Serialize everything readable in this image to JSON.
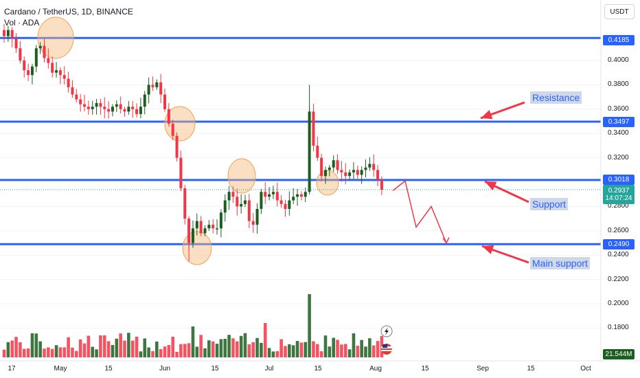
{
  "header": {
    "symbol_line": "Cardano / TetherUS, 1D, BINANCE",
    "volume_line": "Vol · ADA"
  },
  "currency_button": "USDT",
  "price_axis": {
    "ticks": [
      "0.4000",
      "0.3800",
      "0.3600",
      "0.3400",
      "0.3200",
      "0.2800",
      "0.2600",
      "0.2400",
      "0.2200",
      "0.2000",
      "0.1800"
    ],
    "tick_values": [
      0.4,
      0.38,
      0.36,
      0.34,
      0.32,
      0.28,
      0.26,
      0.24,
      0.22,
      0.2,
      0.18
    ]
  },
  "time_axis": {
    "labels": [
      "17",
      "May",
      "15",
      "Jun",
      "15",
      "Jul",
      "15",
      "Aug",
      "15",
      "Sep",
      "15",
      "Oct"
    ]
  },
  "levels": {
    "top": "0.4185",
    "resistance": "0.3497",
    "support": "0.3018",
    "main_support": "0.2490"
  },
  "current_price": "0.2937",
  "countdown": "14:07:24",
  "volume_value": "21.544M",
  "annotations": {
    "resistance": "Resistance",
    "support": "Support",
    "main_support": "Main support"
  },
  "colors": {
    "up": "#1b5e20",
    "down": "#f23645",
    "level_line": "#2962ff",
    "arrow": "#f23645"
  },
  "chart_data": {
    "type": "candlestick",
    "title": "Cardano / TetherUS, 1D, BINANCE",
    "ylim": [
      0.17,
      0.445
    ],
    "horizontal_levels": [
      0.4185,
      0.3497,
      0.3018,
      0.249
    ],
    "close_path": [
      0.42,
      0.425,
      0.418,
      0.41,
      0.4,
      0.392,
      0.388,
      0.395,
      0.41,
      0.412,
      0.402,
      0.398,
      0.39,
      0.392,
      0.388,
      0.385,
      0.378,
      0.372,
      0.368,
      0.364,
      0.362,
      0.36,
      0.362,
      0.365,
      0.362,
      0.36,
      0.358,
      0.362,
      0.364,
      0.36,
      0.358,
      0.362,
      0.36,
      0.356,
      0.362,
      0.372,
      0.38,
      0.378,
      0.382,
      0.372,
      0.36,
      0.348,
      0.338,
      0.32,
      0.295,
      0.27,
      0.25,
      0.262,
      0.268,
      0.258,
      0.262,
      0.265,
      0.262,
      0.262,
      0.275,
      0.285,
      0.292,
      0.288,
      0.28,
      0.282,
      0.285,
      0.268,
      0.265,
      0.278,
      0.292,
      0.288,
      0.29,
      0.292,
      0.285,
      0.282,
      0.278,
      0.285,
      0.288,
      0.29,
      0.288,
      0.292,
      0.358,
      0.33,
      0.32,
      0.305,
      0.31,
      0.312,
      0.318,
      0.31,
      0.308,
      0.305,
      0.308,
      0.31,
      0.306,
      0.31,
      0.312,
      0.315,
      0.31,
      0.302,
      0.2937
    ],
    "projection": [
      {
        "date": "Aug 5",
        "price": 0.293
      },
      {
        "date": "Aug 10",
        "price": 0.301
      },
      {
        "date": "Aug 17",
        "price": 0.263
      },
      {
        "date": "Aug 22",
        "price": 0.28
      },
      {
        "date": "Aug 27",
        "price": 0.25
      }
    ]
  }
}
